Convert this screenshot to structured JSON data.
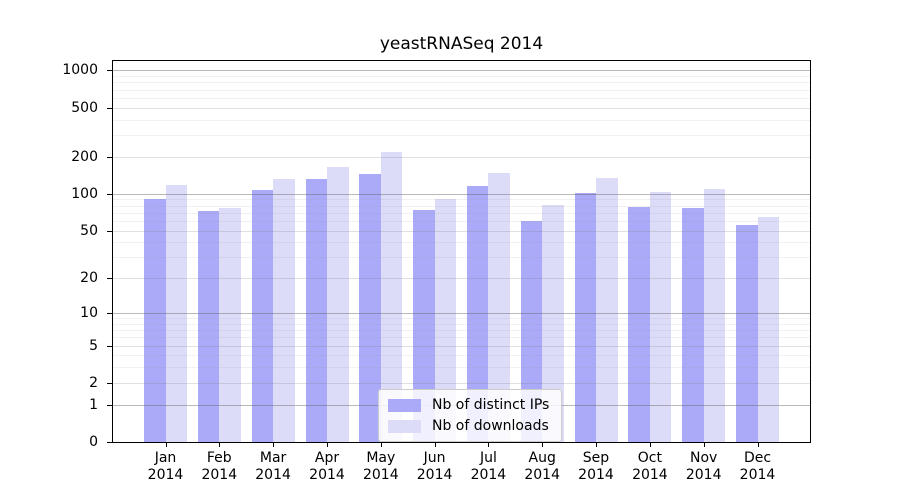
{
  "chart_data": {
    "type": "bar",
    "title": "yeastRNASeq 2014",
    "months": [
      "Jan",
      "Feb",
      "Mar",
      "Apr",
      "May",
      "Jun",
      "Jul",
      "Aug",
      "Sep",
      "Oct",
      "Nov",
      "Dec"
    ],
    "year": "2014",
    "series": [
      {
        "name": "Nb of distinct IPs",
        "color": "#aaaaf8",
        "values": [
          90,
          73,
          107,
          131,
          145,
          74,
          115,
          60,
          101,
          78,
          76,
          56
        ]
      },
      {
        "name": "Nb of downloads",
        "color": "#dcdcf9",
        "values": [
          118,
          76,
          132,
          166,
          219,
          91,
          147,
          81,
          134,
          103,
          110,
          65
        ]
      }
    ],
    "yscale": "log1p",
    "yticks": [
      0,
      1,
      2,
      5,
      10,
      20,
      50,
      100,
      200,
      500,
      1000
    ],
    "ylim": [
      0,
      1190
    ],
    "gridlines": {
      "major": [
        1,
        10,
        100,
        1000
      ],
      "mid": [
        2,
        5,
        20,
        50,
        200,
        500
      ],
      "minor": [
        3,
        4,
        6,
        7,
        8,
        9,
        30,
        40,
        60,
        70,
        80,
        90,
        300,
        400,
        600,
        700,
        800,
        900
      ]
    },
    "grid_on": true,
    "legend_position": "inside-bottom-center"
  }
}
